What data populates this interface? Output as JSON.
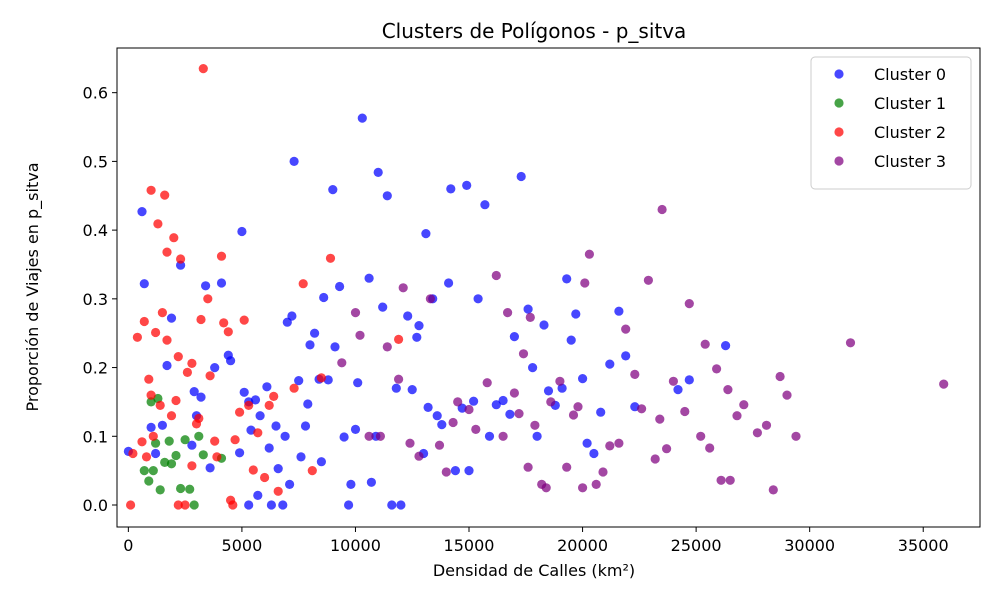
{
  "chart_data": {
    "type": "scatter",
    "title": "Clusters de Polígonos - p_sitva",
    "xlabel": "Densidad de Calles (km²)",
    "ylabel": "Proporción de Viajes en p_sitva",
    "xlim": [
      -500,
      37500
    ],
    "ylim": [
      -0.032,
      0.665
    ],
    "xticks": [
      0,
      5000,
      10000,
      15000,
      20000,
      25000,
      30000,
      35000
    ],
    "yticks": [
      0.0,
      0.1,
      0.2,
      0.3,
      0.4,
      0.5,
      0.6
    ],
    "grid": false,
    "legend_position": "top-right",
    "series": [
      {
        "name": "Cluster 0",
        "color": "#0000ff",
        "points": [
          [
            0,
            0.078
          ],
          [
            600,
            0.427
          ],
          [
            700,
            0.322
          ],
          [
            1000,
            0.113
          ],
          [
            1200,
            0.075
          ],
          [
            1500,
            0.116
          ],
          [
            1700,
            0.203
          ],
          [
            1900,
            0.272
          ],
          [
            2300,
            0.349
          ],
          [
            2800,
            0.087
          ],
          [
            2900,
            0.165
          ],
          [
            3000,
            0.13
          ],
          [
            3200,
            0.157
          ],
          [
            3400,
            0.319
          ],
          [
            3600,
            0.054
          ],
          [
            3800,
            0.2
          ],
          [
            4100,
            0.323
          ],
          [
            4400,
            0.218
          ],
          [
            4500,
            0.21
          ],
          [
            4900,
            0.076
          ],
          [
            5000,
            0.398
          ],
          [
            5100,
            0.164
          ],
          [
            5300,
            0.0
          ],
          [
            5300,
            0.15
          ],
          [
            5400,
            0.109
          ],
          [
            5600,
            0.153
          ],
          [
            5700,
            0.014
          ],
          [
            5800,
            0.13
          ],
          [
            6100,
            0.172
          ],
          [
            6200,
            0.083
          ],
          [
            6300,
            0.0
          ],
          [
            6500,
            0.115
          ],
          [
            6600,
            0.053
          ],
          [
            6800,
            0.0
          ],
          [
            6900,
            0.1
          ],
          [
            7000,
            0.266
          ],
          [
            7100,
            0.03
          ],
          [
            7200,
            0.275
          ],
          [
            7300,
            0.5
          ],
          [
            7500,
            0.181
          ],
          [
            7600,
            0.07
          ],
          [
            7800,
            0.115
          ],
          [
            7900,
            0.147
          ],
          [
            8000,
            0.233
          ],
          [
            8200,
            0.25
          ],
          [
            8400,
            0.183
          ],
          [
            8500,
            0.063
          ],
          [
            8600,
            0.302
          ],
          [
            8800,
            0.182
          ],
          [
            9000,
            0.459
          ],
          [
            9100,
            0.23
          ],
          [
            9300,
            0.318
          ],
          [
            9500,
            0.099
          ],
          [
            9700,
            0.0
          ],
          [
            9800,
            0.03
          ],
          [
            10000,
            0.11
          ],
          [
            10100,
            0.178
          ],
          [
            10300,
            0.563
          ],
          [
            10600,
            0.33
          ],
          [
            10700,
            0.033
          ],
          [
            10900,
            0.1
          ],
          [
            11000,
            0.484
          ],
          [
            11200,
            0.288
          ],
          [
            11400,
            0.45
          ],
          [
            11600,
            0.0
          ],
          [
            11800,
            0.17
          ],
          [
            12000,
            0.0
          ],
          [
            12300,
            0.275
          ],
          [
            12500,
            0.168
          ],
          [
            12700,
            0.244
          ],
          [
            12800,
            0.261
          ],
          [
            13000,
            0.075
          ],
          [
            13100,
            0.395
          ],
          [
            13200,
            0.142
          ],
          [
            13400,
            0.3
          ],
          [
            13600,
            0.13
          ],
          [
            13800,
            0.117
          ],
          [
            14100,
            0.323
          ],
          [
            14200,
            0.46
          ],
          [
            14400,
            0.05
          ],
          [
            14700,
            0.141
          ],
          [
            14900,
            0.465
          ],
          [
            15000,
            0.05
          ],
          [
            15200,
            0.151
          ],
          [
            15400,
            0.3
          ],
          [
            15700,
            0.437
          ],
          [
            15900,
            0.1
          ],
          [
            16200,
            0.146
          ],
          [
            16500,
            0.152
          ],
          [
            16800,
            0.132
          ],
          [
            17000,
            0.245
          ],
          [
            17300,
            0.478
          ],
          [
            17600,
            0.285
          ],
          [
            17800,
            0.2
          ],
          [
            18000,
            0.1
          ],
          [
            18300,
            0.262
          ],
          [
            18500,
            0.166
          ],
          [
            18800,
            0.145
          ],
          [
            19100,
            0.17
          ],
          [
            19300,
            0.329
          ],
          [
            19500,
            0.24
          ],
          [
            19700,
            0.278
          ],
          [
            20000,
            0.184
          ],
          [
            20200,
            0.09
          ],
          [
            20500,
            0.075
          ],
          [
            20800,
            0.135
          ],
          [
            21200,
            0.205
          ],
          [
            21600,
            0.282
          ],
          [
            21900,
            0.217
          ],
          [
            22300,
            0.143
          ],
          [
            24200,
            0.168
          ],
          [
            24700,
            0.182
          ],
          [
            26300,
            0.232
          ]
        ]
      },
      {
        "name": "Cluster 1",
        "color": "#008000",
        "points": [
          [
            700,
            0.05
          ],
          [
            900,
            0.035
          ],
          [
            1000,
            0.15
          ],
          [
            1100,
            0.05
          ],
          [
            1200,
            0.09
          ],
          [
            1300,
            0.155
          ],
          [
            1400,
            0.022
          ],
          [
            1600,
            0.062
          ],
          [
            1800,
            0.093
          ],
          [
            1900,
            0.06
          ],
          [
            2100,
            0.072
          ],
          [
            2300,
            0.024
          ],
          [
            2500,
            0.095
          ],
          [
            2700,
            0.023
          ],
          [
            2900,
            0.0
          ],
          [
            3100,
            0.1
          ],
          [
            3300,
            0.073
          ],
          [
            4100,
            0.068
          ]
        ]
      },
      {
        "name": "Cluster 2",
        "color": "#ff0000",
        "points": [
          [
            100,
            0.0
          ],
          [
            200,
            0.075
          ],
          [
            400,
            0.244
          ],
          [
            600,
            0.092
          ],
          [
            700,
            0.267
          ],
          [
            800,
            0.07
          ],
          [
            900,
            0.183
          ],
          [
            1000,
            0.16
          ],
          [
            1000,
            0.458
          ],
          [
            1100,
            0.1
          ],
          [
            1200,
            0.251
          ],
          [
            1300,
            0.409
          ],
          [
            1400,
            0.145
          ],
          [
            1500,
            0.28
          ],
          [
            1600,
            0.451
          ],
          [
            1700,
            0.368
          ],
          [
            1700,
            0.24
          ],
          [
            1900,
            0.13
          ],
          [
            2000,
            0.389
          ],
          [
            2100,
            0.152
          ],
          [
            2200,
            0.216
          ],
          [
            2200,
            0.0
          ],
          [
            2300,
            0.358
          ],
          [
            2500,
            0.0
          ],
          [
            2600,
            0.193
          ],
          [
            2800,
            0.057
          ],
          [
            2800,
            0.206
          ],
          [
            3000,
            0.118
          ],
          [
            3100,
            0.126
          ],
          [
            3200,
            0.27
          ],
          [
            3300,
            0.635
          ],
          [
            3500,
            0.3
          ],
          [
            3600,
            0.188
          ],
          [
            3800,
            0.093
          ],
          [
            3900,
            0.07
          ],
          [
            4100,
            0.362
          ],
          [
            4200,
            0.265
          ],
          [
            4400,
            0.252
          ],
          [
            4500,
            0.007
          ],
          [
            4600,
            0.0
          ],
          [
            4700,
            0.095
          ],
          [
            4900,
            0.135
          ],
          [
            5100,
            0.269
          ],
          [
            5300,
            0.145
          ],
          [
            5500,
            0.051
          ],
          [
            5700,
            0.105
          ],
          [
            6000,
            0.04
          ],
          [
            6200,
            0.145
          ],
          [
            6400,
            0.158
          ],
          [
            6600,
            0.02
          ],
          [
            7300,
            0.17
          ],
          [
            7700,
            0.322
          ],
          [
            8100,
            0.05
          ],
          [
            8500,
            0.185
          ],
          [
            8900,
            0.359
          ],
          [
            11900,
            0.241
          ]
        ]
      },
      {
        "name": "Cluster 3",
        "color": "#800080",
        "points": [
          [
            9400,
            0.207
          ],
          [
            10000,
            0.28
          ],
          [
            10200,
            0.247
          ],
          [
            10600,
            0.1
          ],
          [
            11100,
            0.1
          ],
          [
            11400,
            0.23
          ],
          [
            11900,
            0.183
          ],
          [
            12100,
            0.316
          ],
          [
            12400,
            0.09
          ],
          [
            12800,
            0.071
          ],
          [
            13300,
            0.3
          ],
          [
            13700,
            0.087
          ],
          [
            14000,
            0.048
          ],
          [
            14300,
            0.12
          ],
          [
            14500,
            0.15
          ],
          [
            15000,
            0.139
          ],
          [
            15300,
            0.11
          ],
          [
            15800,
            0.178
          ],
          [
            16200,
            0.334
          ],
          [
            16500,
            0.1
          ],
          [
            16700,
            0.28
          ],
          [
            17000,
            0.163
          ],
          [
            17200,
            0.133
          ],
          [
            17400,
            0.22
          ],
          [
            17600,
            0.055
          ],
          [
            17700,
            0.273
          ],
          [
            17900,
            0.116
          ],
          [
            18200,
            0.03
          ],
          [
            18400,
            0.025
          ],
          [
            18600,
            0.15
          ],
          [
            19000,
            0.18
          ],
          [
            19300,
            0.055
          ],
          [
            19600,
            0.131
          ],
          [
            19800,
            0.143
          ],
          [
            20000,
            0.025
          ],
          [
            20100,
            0.323
          ],
          [
            20300,
            0.365
          ],
          [
            20600,
            0.03
          ],
          [
            20900,
            0.048
          ],
          [
            21200,
            0.086
          ],
          [
            21600,
            0.09
          ],
          [
            21900,
            0.256
          ],
          [
            22300,
            0.19
          ],
          [
            22600,
            0.14
          ],
          [
            22900,
            0.327
          ],
          [
            23200,
            0.067
          ],
          [
            23400,
            0.125
          ],
          [
            23500,
            0.43
          ],
          [
            23700,
            0.082
          ],
          [
            24000,
            0.18
          ],
          [
            24500,
            0.136
          ],
          [
            24700,
            0.293
          ],
          [
            25200,
            0.1
          ],
          [
            25400,
            0.234
          ],
          [
            25600,
            0.083
          ],
          [
            25900,
            0.198
          ],
          [
            26100,
            0.036
          ],
          [
            26400,
            0.168
          ],
          [
            26500,
            0.036
          ],
          [
            26800,
            0.13
          ],
          [
            27100,
            0.146
          ],
          [
            27700,
            0.105
          ],
          [
            28100,
            0.116
          ],
          [
            28400,
            0.022
          ],
          [
            28700,
            0.187
          ],
          [
            29000,
            0.16
          ],
          [
            29400,
            0.1
          ],
          [
            31800,
            0.236
          ],
          [
            35900,
            0.176
          ]
        ]
      }
    ]
  }
}
